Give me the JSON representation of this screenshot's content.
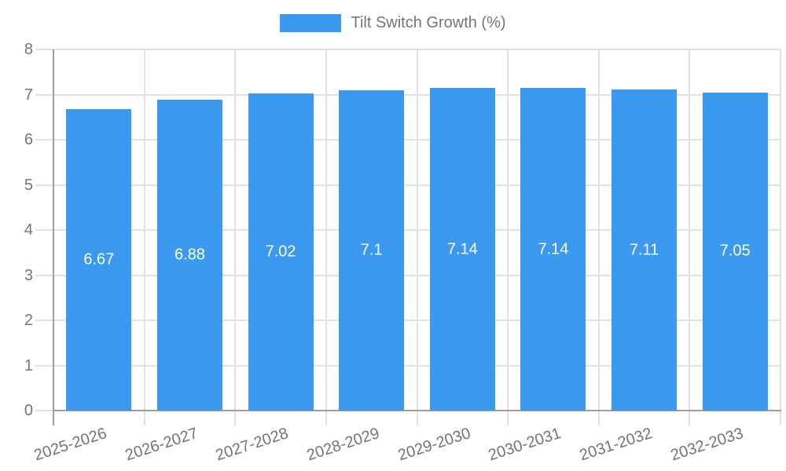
{
  "chart_data": {
    "type": "bar",
    "title": "Tilt Switch Growth (%)",
    "categories": [
      "2025-2026",
      "2026-2027",
      "2027-2028",
      "2028-2029",
      "2029-2030",
      "2030-2031",
      "2031-2032",
      "2032-2033"
    ],
    "series": [
      {
        "name": "Tilt Switch Growth (%)",
        "values": [
          6.67,
          6.88,
          7.02,
          7.1,
          7.14,
          7.14,
          7.11,
          7.05
        ]
      }
    ],
    "value_labels": [
      "6.67",
      "6.88",
      "7.02",
      "7.1",
      "7.14",
      "7.14",
      "7.11",
      "7.05"
    ],
    "xlabel": "",
    "ylabel": "",
    "ylim": [
      0,
      8
    ],
    "y_ticks": [
      0,
      1,
      2,
      3,
      4,
      5,
      6,
      7,
      8
    ],
    "grid": "horizontal and vertical category boundaries",
    "legend_position": "top-center",
    "colors": {
      "bar": "#3b99ef",
      "text": "#757575",
      "grid": "#e2e2e2",
      "axis": "#9e9e9e",
      "value_label": "#ffffff",
      "background": "#ffffff"
    }
  },
  "legend": {
    "label": "Tilt Switch Growth (%)"
  }
}
